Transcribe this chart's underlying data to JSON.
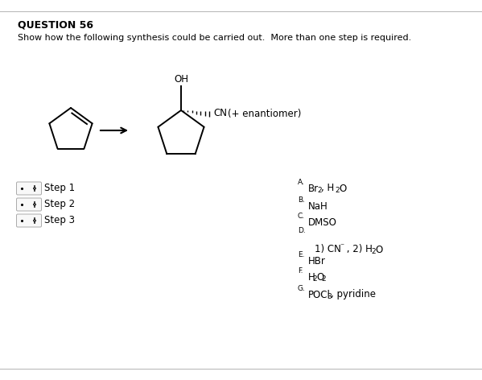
{
  "title": "QUESTION 56",
  "subtitle": "Show how the following synthesis could be carried out.  More than one step is required.",
  "background_color": "#ffffff",
  "line_color": "#bbbbbb",
  "steps": [
    "Step 1",
    "Step 2",
    "Step 3"
  ],
  "enantiomer_text": "(+ enantiomer)",
  "oh_label": "OH",
  "cn_label": "CN",
  "figsize": [
    5.99,
    4.72
  ],
  "dpi": 100
}
